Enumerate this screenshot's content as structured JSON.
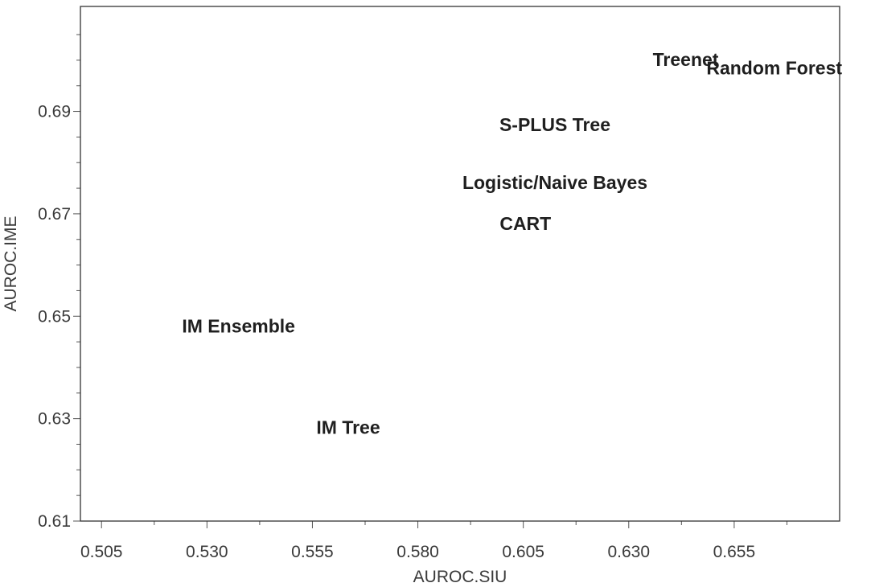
{
  "chart_data": {
    "type": "scatter",
    "title": "",
    "xlabel": "AUROC.SIU",
    "ylabel": "AUROC.IME",
    "xlim": [
      0.5,
      0.68
    ],
    "ylim": [
      0.61,
      0.7105
    ],
    "x_ticks": [
      "0.505",
      "0.530",
      "0.555",
      "0.580",
      "0.605",
      "0.630",
      "0.655"
    ],
    "y_ticks": [
      "0.61",
      "0.63",
      "0.65",
      "0.67",
      "0.69"
    ],
    "grid": false,
    "points": [
      {
        "label": "Treenet",
        "x": 0.6435,
        "y": 0.7001
      },
      {
        "label": "Random Forest",
        "x": 0.6645,
        "y": 0.6985
      },
      {
        "label": "S-PLUS Tree",
        "x": 0.6125,
        "y": 0.6874
      },
      {
        "label": "Logistic/Naive Bayes",
        "x": 0.6125,
        "y": 0.6761
      },
      {
        "label": "CART",
        "x": 0.6055,
        "y": 0.6681
      },
      {
        "label": "IM Ensemble",
        "x": 0.5375,
        "y": 0.6481
      },
      {
        "label": "IM Tree",
        "x": 0.5635,
        "y": 0.6283
      }
    ]
  }
}
